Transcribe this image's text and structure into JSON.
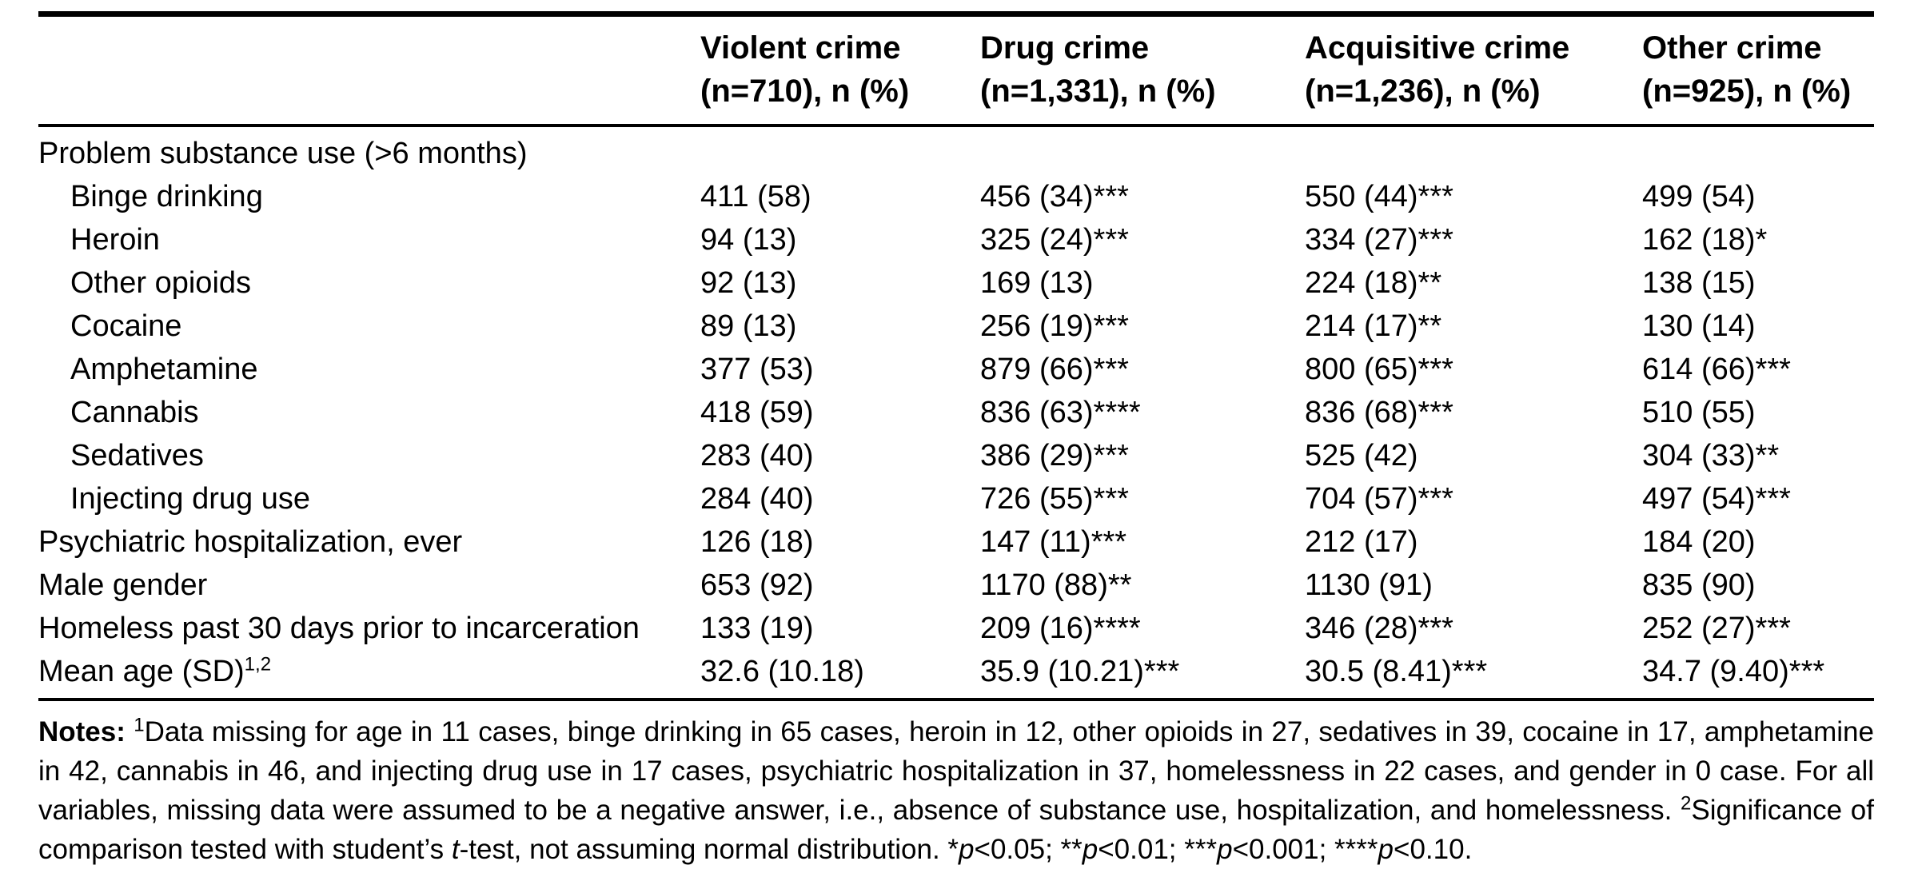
{
  "colors": {
    "text": "#000000",
    "background": "#ffffff",
    "rule": "#000000"
  },
  "table": {
    "columns": [
      {
        "title": "Violent crime",
        "subtitle": "(n=710), n (%)"
      },
      {
        "title": "Drug crime",
        "subtitle": "(n=1,331), n (%)"
      },
      {
        "title": "Acquisitive crime",
        "subtitle": "(n=1,236), n (%)"
      },
      {
        "title": "Other crime",
        "subtitle": "(n=925), n (%)"
      }
    ],
    "rows": [
      {
        "label": "Problem substance use (>6 months)",
        "values": [
          "",
          "",
          "",
          ""
        ]
      },
      {
        "label": "Binge drinking",
        "values": [
          "411 (58)",
          "456 (34)***",
          "550 (44)***",
          "499 (54)"
        ]
      },
      {
        "label": "Heroin",
        "values": [
          "94 (13)",
          "325 (24)***",
          "334 (27)***",
          "162 (18)*"
        ]
      },
      {
        "label": "Other opioids",
        "values": [
          "92 (13)",
          "169 (13)",
          "224 (18)**",
          "138 (15)"
        ]
      },
      {
        "label": "Cocaine",
        "values": [
          "89 (13)",
          "256 (19)***",
          "214 (17)**",
          "130 (14)"
        ]
      },
      {
        "label": "Amphetamine",
        "values": [
          "377 (53)",
          "879 (66)***",
          "800 (65)***",
          "614 (66)***"
        ]
      },
      {
        "label": "Cannabis",
        "values": [
          "418 (59)",
          "836 (63)****",
          "836 (68)***",
          "510 (55)"
        ]
      },
      {
        "label": "Sedatives",
        "values": [
          "283 (40)",
          "386 (29)***",
          "525 (42)",
          "304 (33)**"
        ]
      },
      {
        "label": "Injecting drug use",
        "values": [
          "284 (40)",
          "726 (55)***",
          "704 (57)***",
          "497 (54)***"
        ]
      },
      {
        "label": "Psychiatric hospitalization, ever",
        "values": [
          "126 (18)",
          "147 (11)***",
          "212 (17)",
          "184 (20)"
        ]
      },
      {
        "label": "Male gender",
        "values": [
          "653 (92)",
          "1170 (88)**",
          "1130 (91)",
          "835 (90)"
        ]
      },
      {
        "label": "Homeless past 30 days prior to incarceration",
        "values": [
          "133 (19)",
          "209 (16)****",
          "346 (28)***",
          "252 (27)***"
        ]
      },
      {
        "label": "Mean age (SD)",
        "label_sup": "1,2",
        "values": [
          "32.6 (10.18)",
          "35.9 (10.21)***",
          "30.5 (8.41)***",
          "34.7 (9.40)***"
        ]
      }
    ]
  },
  "notes": {
    "label": "Notes: ",
    "sup1": "1",
    "part1": "Data missing for age in 11 cases, binge drinking in 65 cases, heroin in 12, other opioids in 27, sedatives in 39, cocaine in 17, amphetamine in 42, cannabis in 46, and injecting drug use in 17 cases, psychiatric hospitalization in 37, homelessness in 22 cases, and gender in 0 case. For all variables, missing data were assumed to be a negative answer, i.e., absence of substance use, hospitalization, and homelessness. ",
    "sup2": "2",
    "part2": "Significance of comparison tested with student’s ",
    "t": "t",
    "part3": "-test, not assuming normal distribution. *",
    "p": "p",
    "part4": "<0.05; **",
    "part5": "<0.01; ***",
    "part6": "<0.001; ****",
    "part7": "<0.10."
  }
}
